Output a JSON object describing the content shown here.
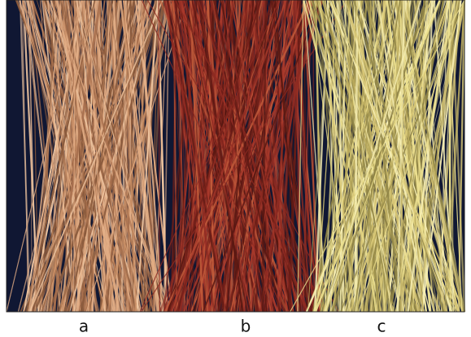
{
  "labels": [
    "a",
    "b",
    "c"
  ]
}
